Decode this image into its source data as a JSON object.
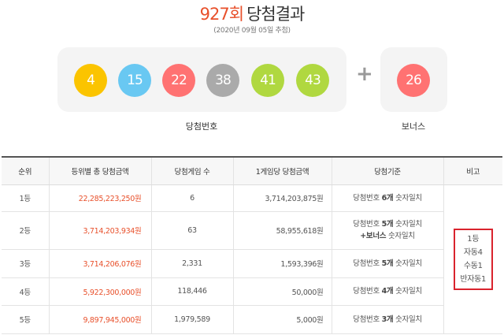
{
  "header": {
    "round": "927회",
    "title": "당첨결과",
    "date": "(2020년 09월 05일 추첨)"
  },
  "winning": {
    "label": "당첨번호",
    "balls": [
      {
        "number": "4",
        "color": "#fbc400"
      },
      {
        "number": "15",
        "color": "#69c8f2"
      },
      {
        "number": "22",
        "color": "#ff7272"
      },
      {
        "number": "38",
        "color": "#aaaaaa"
      },
      {
        "number": "41",
        "color": "#b0d840"
      },
      {
        "number": "43",
        "color": "#b0d840"
      }
    ],
    "plus": "+"
  },
  "bonus": {
    "label": "보너스",
    "number": "26",
    "color": "#ff7272"
  },
  "table": {
    "headers": [
      "순위",
      "등위별 총 당첨금액",
      "당첨게임 수",
      "1게임당 당첨금액",
      "당첨기준",
      "비고"
    ],
    "rows": [
      {
        "rank": "1등",
        "total": "22,285,223,250원",
        "games": "6",
        "per_game": "3,714,203,875원",
        "crit_pre": "당첨번호 ",
        "crit_bold": "6개",
        "crit_post": " 숫자일치",
        "crit_line2_bold": "",
        "crit_line2_post": ""
      },
      {
        "rank": "2등",
        "total": "3,714,203,934원",
        "games": "63",
        "per_game": "58,955,618원",
        "crit_pre": "당첨번호 ",
        "crit_bold": "5개",
        "crit_post": " 숫자일치",
        "crit_line2_bold": "+보너스",
        "crit_line2_post": " 숫자일치"
      },
      {
        "rank": "3등",
        "total": "3,714,206,076원",
        "games": "2,331",
        "per_game": "1,593,396원",
        "crit_pre": "당첨번호 ",
        "crit_bold": "5개",
        "crit_post": " 숫자일치",
        "crit_line2_bold": "",
        "crit_line2_post": ""
      },
      {
        "rank": "4등",
        "total": "5,922,300,000원",
        "games": "118,446",
        "per_game": "50,000원",
        "crit_pre": "당첨번호 ",
        "crit_bold": "4개",
        "crit_post": " 숫자일치",
        "crit_line2_bold": "",
        "crit_line2_post": ""
      },
      {
        "rank": "5등",
        "total": "9,897,945,000원",
        "games": "1,979,589",
        "per_game": "5,000원",
        "crit_pre": "당첨번호 ",
        "crit_bold": "3개",
        "crit_post": " 숫자일치",
        "crit_line2_bold": "",
        "crit_line2_post": ""
      }
    ],
    "note_lines": [
      "1등",
      "자동4",
      "수동1",
      "반자동1"
    ]
  }
}
